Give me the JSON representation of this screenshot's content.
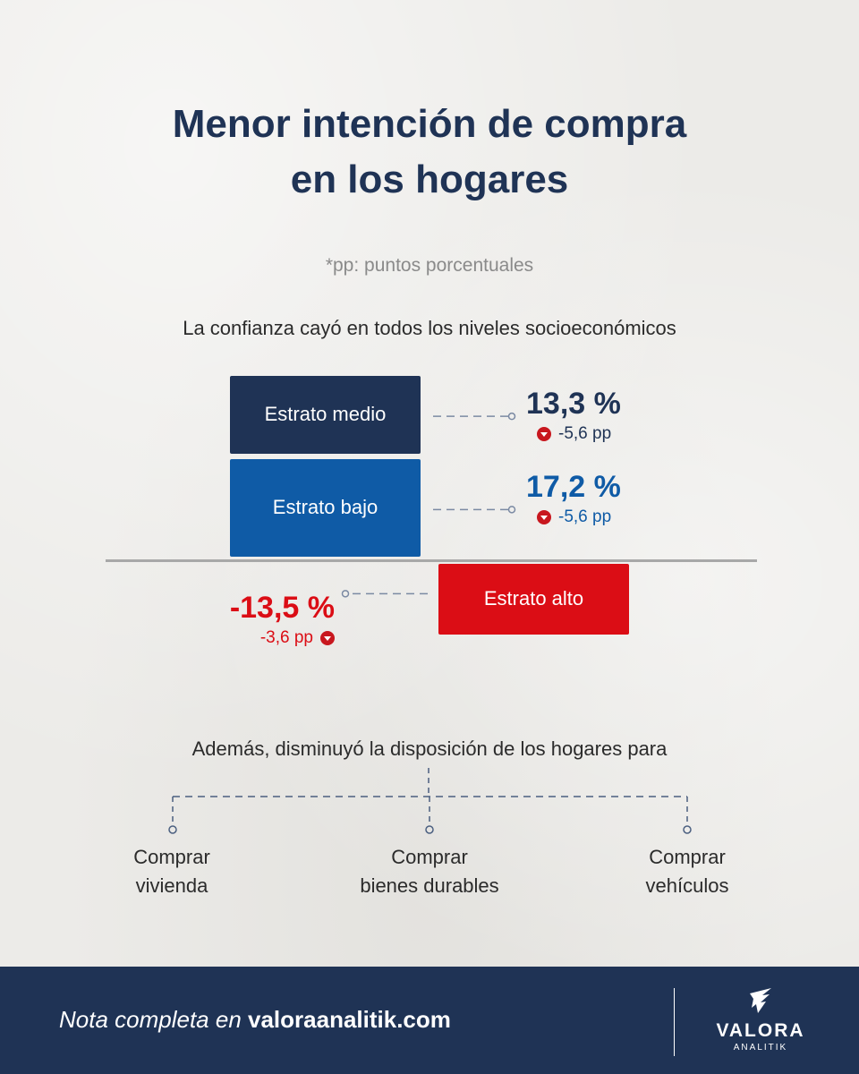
{
  "title": {
    "line1": "Menor intención de compra",
    "line2": "en los hogares"
  },
  "note": "*pp: puntos porcentuales",
  "subtitle": "La confianza cayó en todos los niveles socioeconómicos",
  "chart_data": {
    "type": "bar",
    "categories": [
      "Estrato medio",
      "Estrato bajo",
      "Estrato alto"
    ],
    "values": [
      13.3,
      17.2,
      -13.5
    ],
    "value_labels": [
      "13,3 %",
      "17,2 %",
      "-13,5 %"
    ],
    "changes_pp": [
      -5.6,
      -5.6,
      -3.6
    ],
    "change_labels": [
      "-5,6 pp",
      "-5,6 pp",
      "-3,6 pp"
    ],
    "colors": [
      "#1f3355",
      "#0f5ba6",
      "#db0d15"
    ],
    "value_colors": [
      "#1f3355",
      "#0f5ba6",
      "#db0d15"
    ]
  },
  "intro": "Además, disminuyó la disposición de los hogares para",
  "items": [
    {
      "line1": "Comprar",
      "line2": "vivienda"
    },
    {
      "line1": "Comprar",
      "line2": "bienes durables"
    },
    {
      "line1": "Comprar",
      "line2": "vehículos"
    }
  ],
  "footer": {
    "prefix": "Nota completa en ",
    "link": "valoraanalitik.com"
  },
  "logo": {
    "name": "VALORA",
    "sub": "ANALITIK"
  },
  "colors": {
    "navy": "#1f3355",
    "blue": "#0f5ba6",
    "red": "#db0d15",
    "icon_red": "#c8171e"
  }
}
